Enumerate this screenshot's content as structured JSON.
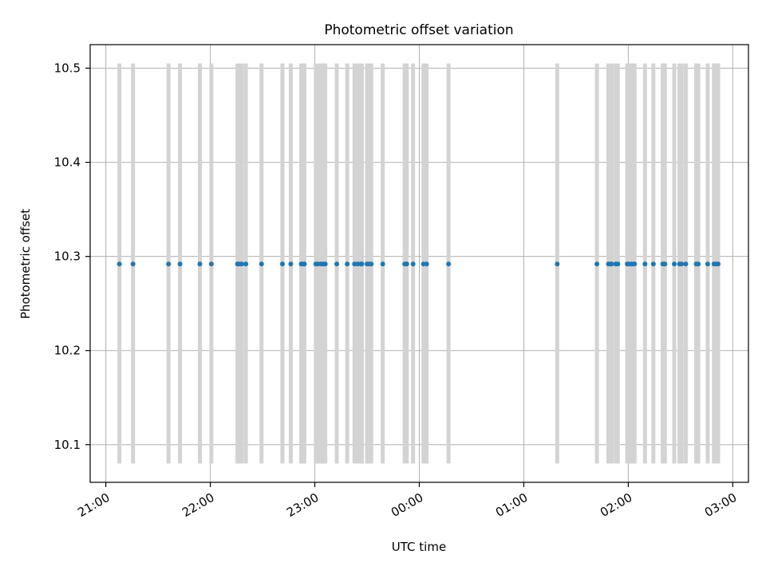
{
  "chart_data": {
    "type": "scatter",
    "title": "Photometric offset variation",
    "xlabel": "UTC time",
    "ylabel": "Photometric offset",
    "x_tick_labels": [
      "21:00",
      "22:00",
      "23:00",
      "00:00",
      "01:00",
      "02:00",
      "03:00"
    ],
    "x_tick_hours": [
      21,
      22,
      23,
      24,
      25,
      26,
      27
    ],
    "x_range_hours": [
      20.85,
      27.15
    ],
    "y_ticks": [
      10.1,
      10.2,
      10.3,
      10.4,
      10.5
    ],
    "y_tick_labels": [
      "10.1",
      "10.2",
      "10.3",
      "10.4",
      "10.5"
    ],
    "ylim": [
      10.06,
      10.525
    ],
    "grid": true,
    "error_bar": {
      "lower": 10.08,
      "upper": 10.505
    },
    "points_hours": [
      21.13,
      21.26,
      21.6,
      21.71,
      21.9,
      22.01,
      22.26,
      22.28,
      22.3,
      22.34,
      22.49,
      22.69,
      22.77,
      22.87,
      22.89,
      22.9,
      23.01,
      23.03,
      23.06,
      23.08,
      23.1,
      23.21,
      23.31,
      23.38,
      23.41,
      23.44,
      23.45,
      23.5,
      23.52,
      23.54,
      23.65,
      23.86,
      23.88,
      23.94,
      24.04,
      24.07,
      24.28,
      25.32,
      25.7,
      25.81,
      25.83,
      25.84,
      25.88,
      25.9,
      25.99,
      26.01,
      26.03,
      26.04,
      26.06,
      26.16,
      26.24,
      26.33,
      26.35,
      26.44,
      26.49,
      26.51,
      26.55,
      26.65,
      26.67,
      26.76,
      26.82,
      26.84,
      26.86
    ],
    "y_value": 10.292,
    "colors": {
      "points": "#1f77b4",
      "error_bars": "#d3d3d3",
      "grid": "#b0b0b0"
    }
  }
}
